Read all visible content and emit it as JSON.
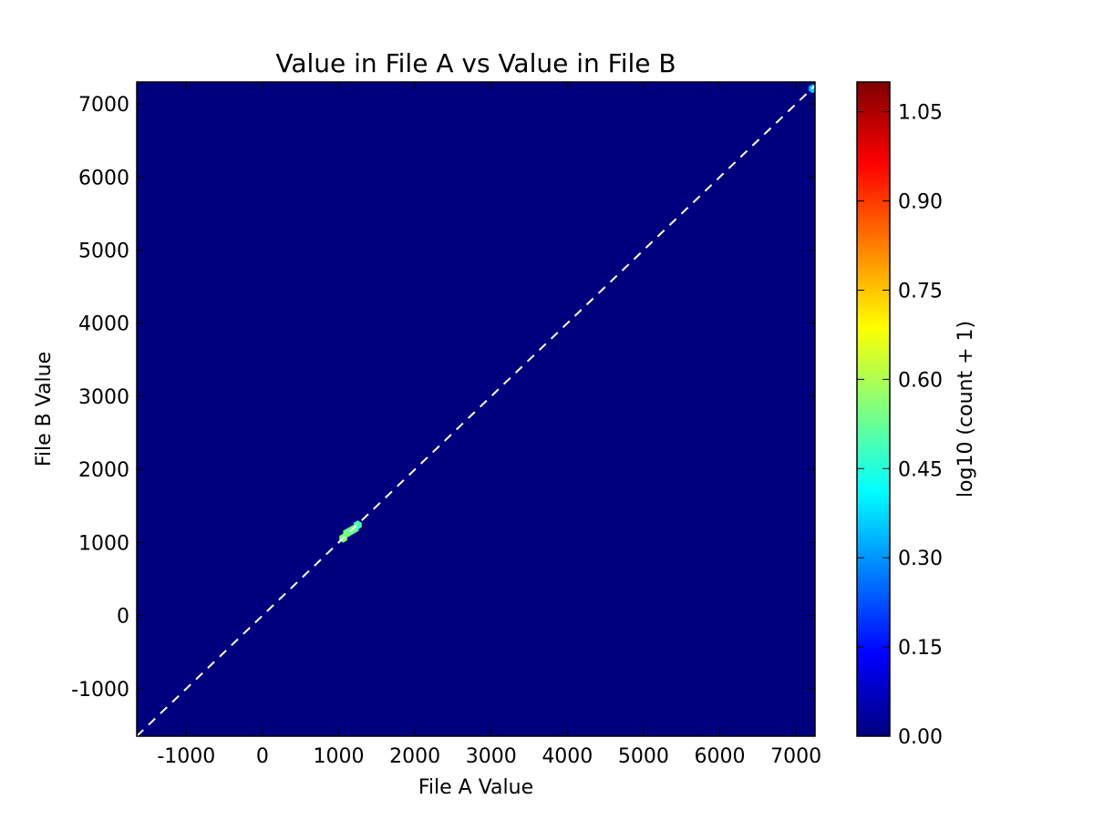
{
  "chart_data": {
    "type": "heatmap",
    "title": "Value in File A vs Value in File B",
    "xlabel": "File A Value",
    "ylabel": "File B Value",
    "xlim": [
      -1650,
      7250
    ],
    "ylim": [
      -1650,
      7300
    ],
    "xticks": [
      -1000,
      0,
      1000,
      2000,
      3000,
      4000,
      5000,
      6000,
      7000
    ],
    "yticks": [
      -1000,
      0,
      1000,
      2000,
      3000,
      4000,
      5000,
      6000,
      7000
    ],
    "xtick_labels": [
      "-1000",
      "0",
      "1000",
      "2000",
      "3000",
      "4000",
      "5000",
      "6000",
      "7000"
    ],
    "ytick_labels": [
      "-1000",
      "0",
      "1000",
      "2000",
      "3000",
      "4000",
      "5000",
      "6000",
      "7000"
    ],
    "background_color": "#00007f",
    "identity_line": {
      "from": [
        -1650,
        -1650
      ],
      "to": [
        7250,
        7250
      ],
      "color": "#ffffff",
      "style": "dashed"
    },
    "bins": [
      {
        "x": 1060,
        "y": 1060,
        "log_count": 0.55,
        "color": "#7cff79"
      },
      {
        "x": 1110,
        "y": 1130,
        "log_count": 0.55,
        "color": "#7cff79"
      },
      {
        "x": 1160,
        "y": 1160,
        "log_count": 0.5,
        "color": "#66ff90"
      },
      {
        "x": 1210,
        "y": 1190,
        "log_count": 0.5,
        "color": "#66ff90"
      },
      {
        "x": 1250,
        "y": 1240,
        "log_count": 0.45,
        "color": "#49ffad"
      },
      {
        "x": 7220,
        "y": 7210,
        "log_count": 0.3,
        "color": "#00c0ff"
      }
    ],
    "colorbar": {
      "label": "log10 (count + 1)",
      "min": 0.0,
      "max": 1.1,
      "ticks": [
        0.0,
        0.15,
        0.3,
        0.45,
        0.6,
        0.75,
        0.9,
        1.05
      ],
      "tick_labels": [
        "0.00",
        "0.15",
        "0.30",
        "0.45",
        "0.60",
        "0.75",
        "0.90",
        "1.05"
      ],
      "colormap": "jet",
      "stops": [
        "#00007f",
        "#0000ff",
        "#007fff",
        "#00ffff",
        "#7fff7f",
        "#ffff00",
        "#ff7f00",
        "#ff0000",
        "#7f0000"
      ]
    },
    "grid": false,
    "legend": "none"
  }
}
